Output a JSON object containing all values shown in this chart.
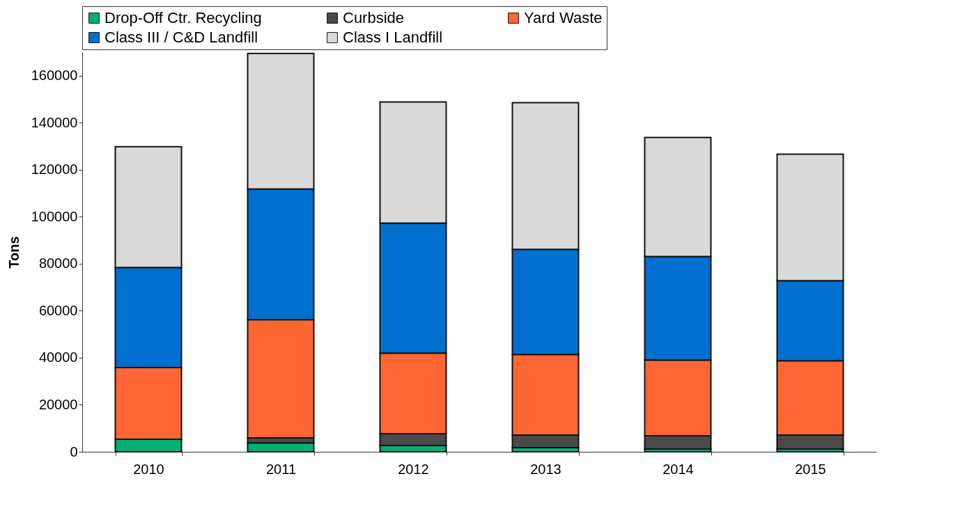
{
  "chart_data": {
    "type": "bar",
    "stacked": true,
    "ylabel": "Tons",
    "categories": [
      "2010",
      "2011",
      "2012",
      "2013",
      "2014",
      "2015"
    ],
    "series": [
      {
        "name": "Drop-Off Ctr. Recycling",
        "color": "#00b070",
        "values": [
          5300,
          3800,
          2700,
          1800,
          1200,
          1200
        ]
      },
      {
        "name": "Curbside",
        "color": "#4a4a4a",
        "values": [
          0,
          2100,
          5000,
          5300,
          5600,
          5900
        ]
      },
      {
        "name": "Yard Waste",
        "color": "#ff6633",
        "values": [
          30500,
          50300,
          34300,
          34300,
          32200,
          31600
        ]
      },
      {
        "name": "Class III / C&D Landfill",
        "color": "#0070d0",
        "values": [
          42600,
          55600,
          55300,
          44700,
          44100,
          34100
        ]
      },
      {
        "name": "Class I Landfill",
        "color": "#d9d9d9",
        "values": [
          51400,
          57700,
          51500,
          62400,
          50600,
          53800
        ]
      }
    ],
    "ylim": [
      0,
      170000
    ],
    "yticks": [
      0,
      20000,
      40000,
      60000,
      80000,
      100000,
      120000,
      140000,
      160000
    ],
    "grid": false,
    "legend": "top"
  }
}
